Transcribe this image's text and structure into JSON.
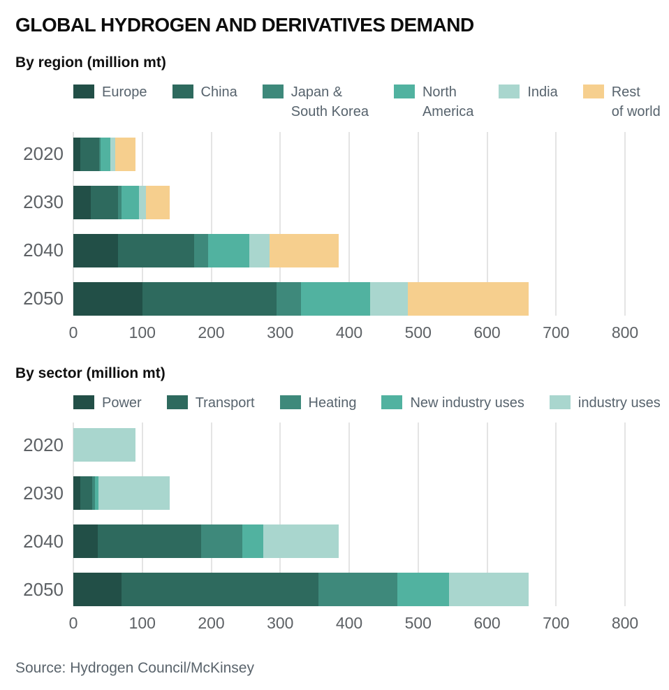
{
  "title": "GLOBAL HYDROGEN AND DERIVATIVES DEMAND",
  "source": "Source: Hydrogen Council/McKinsey",
  "axis": {
    "ticks": [
      "0",
      "100",
      "200",
      "300",
      "400",
      "500",
      "600",
      "700",
      "800"
    ],
    "max": 800
  },
  "chart_data": [
    {
      "type": "bar",
      "orientation": "horizontal",
      "stacked": true,
      "title": "By region (million mt)",
      "categories": [
        "2020",
        "2030",
        "2040",
        "2050"
      ],
      "xlim": [
        0,
        800
      ],
      "grid": true,
      "legend_position": "top",
      "series": [
        {
          "name": "Europe",
          "color": "#224f47",
          "values": [
            10,
            25,
            65,
            100
          ]
        },
        {
          "name": "China",
          "color": "#2e6a5e",
          "values": [
            27,
            40,
            110,
            195
          ]
        },
        {
          "name": "Japan &\nSouth Korea",
          "color": "#3e897b",
          "values": [
            3,
            5,
            20,
            35
          ]
        },
        {
          "name": "North\nAmerica",
          "color": "#51b2a0",
          "values": [
            14,
            25,
            60,
            100
          ]
        },
        {
          "name": "India",
          "color": "#a9d6ce",
          "values": [
            7,
            10,
            30,
            55
          ]
        },
        {
          "name": "Rest\nof world",
          "color": "#f6cf8e",
          "values": [
            29,
            35,
            100,
            175
          ]
        }
      ],
      "totals": [
        90,
        140,
        385,
        660
      ]
    },
    {
      "type": "bar",
      "orientation": "horizontal",
      "stacked": true,
      "title": "By sector (million mt)",
      "categories": [
        "2020",
        "2030",
        "2040",
        "2050"
      ],
      "xlim": [
        0,
        800
      ],
      "grid": true,
      "legend_position": "top",
      "series": [
        {
          "name": "Power",
          "color": "#224f47",
          "values": [
            0,
            10,
            35,
            70
          ]
        },
        {
          "name": "Transport",
          "color": "#2e6a5e",
          "values": [
            0,
            17,
            150,
            285
          ]
        },
        {
          "name": "Heating",
          "color": "#3e897b",
          "values": [
            0,
            4,
            60,
            115
          ]
        },
        {
          "name": "New industry uses",
          "color": "#51b2a0",
          "values": [
            0,
            5,
            30,
            75
          ]
        },
        {
          "name": "industry uses",
          "color": "#a9d6ce",
          "values": [
            90,
            104,
            110,
            115
          ]
        }
      ],
      "totals": [
        90,
        140,
        385,
        660
      ]
    }
  ]
}
